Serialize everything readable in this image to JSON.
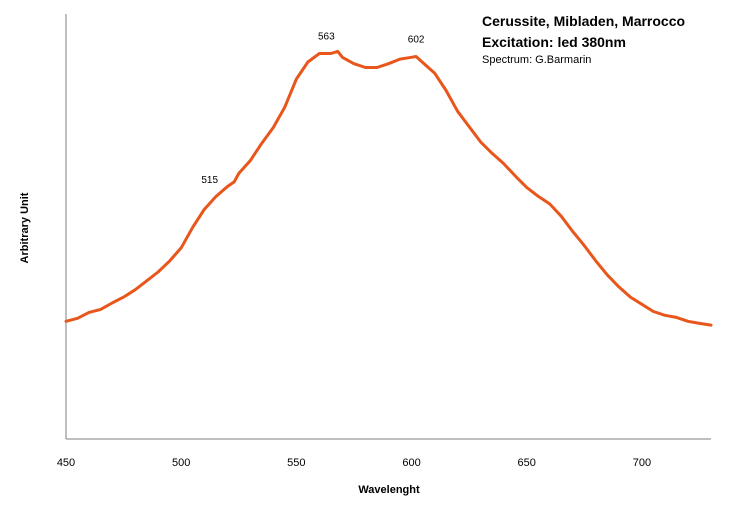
{
  "chart_data": {
    "type": "line",
    "title": "Cerussite, Mibladen, Marrocco",
    "subtitle": "Excitation: led 380nm",
    "credit": "Spectrum: G.Barmarin",
    "xlabel": "Wavelenght",
    "ylabel": "Arbitrary Unit",
    "xlim": [
      450,
      730
    ],
    "ylim": [
      0,
      100
    ],
    "xticks": [
      "450",
      "500",
      "550",
      "600",
      "650",
      "700"
    ],
    "grid": false,
    "legend": "none",
    "line_color": "#E8561C",
    "series": [
      {
        "x": [
          450,
          455,
          460,
          465,
          470,
          475,
          480,
          485,
          490,
          495,
          500,
          505,
          510,
          515,
          520,
          523,
          525,
          530,
          535,
          540,
          545,
          550,
          555,
          560,
          565,
          568,
          570,
          575,
          580,
          585,
          590,
          595,
          600,
          602,
          605,
          610,
          615,
          620,
          625,
          630,
          635,
          640,
          645,
          650,
          655,
          660,
          665,
          670,
          675,
          680,
          685,
          690,
          695,
          700,
          705,
          710,
          715,
          720,
          725,
          730
        ],
        "y": [
          27.7,
          28.4,
          29.8,
          30.5,
          32.0,
          33.4,
          35.1,
          37.2,
          39.3,
          41.9,
          45.0,
          49.8,
          54.0,
          57.0,
          59.4,
          60.5,
          62.5,
          65.5,
          69.6,
          73.3,
          78.1,
          84.7,
          88.7,
          90.7,
          90.7,
          91.2,
          89.8,
          88.3,
          87.4,
          87.4,
          88.3,
          89.4,
          89.8,
          90.0,
          88.5,
          86.1,
          82.0,
          77.1,
          73.5,
          69.9,
          67.2,
          64.8,
          61.9,
          59.2,
          57.1,
          55.3,
          52.4,
          48.8,
          45.5,
          41.9,
          38.6,
          35.8,
          33.4,
          31.7,
          30.0,
          29.1,
          28.6,
          27.7,
          27.2,
          26.8
        ]
      }
    ],
    "annotations": [
      {
        "text": "515",
        "x": 515,
        "y": 57.0
      },
      {
        "text": "563",
        "x": 563,
        "y": 90.7
      },
      {
        "text": "602",
        "x": 602,
        "y": 90.0
      }
    ]
  }
}
